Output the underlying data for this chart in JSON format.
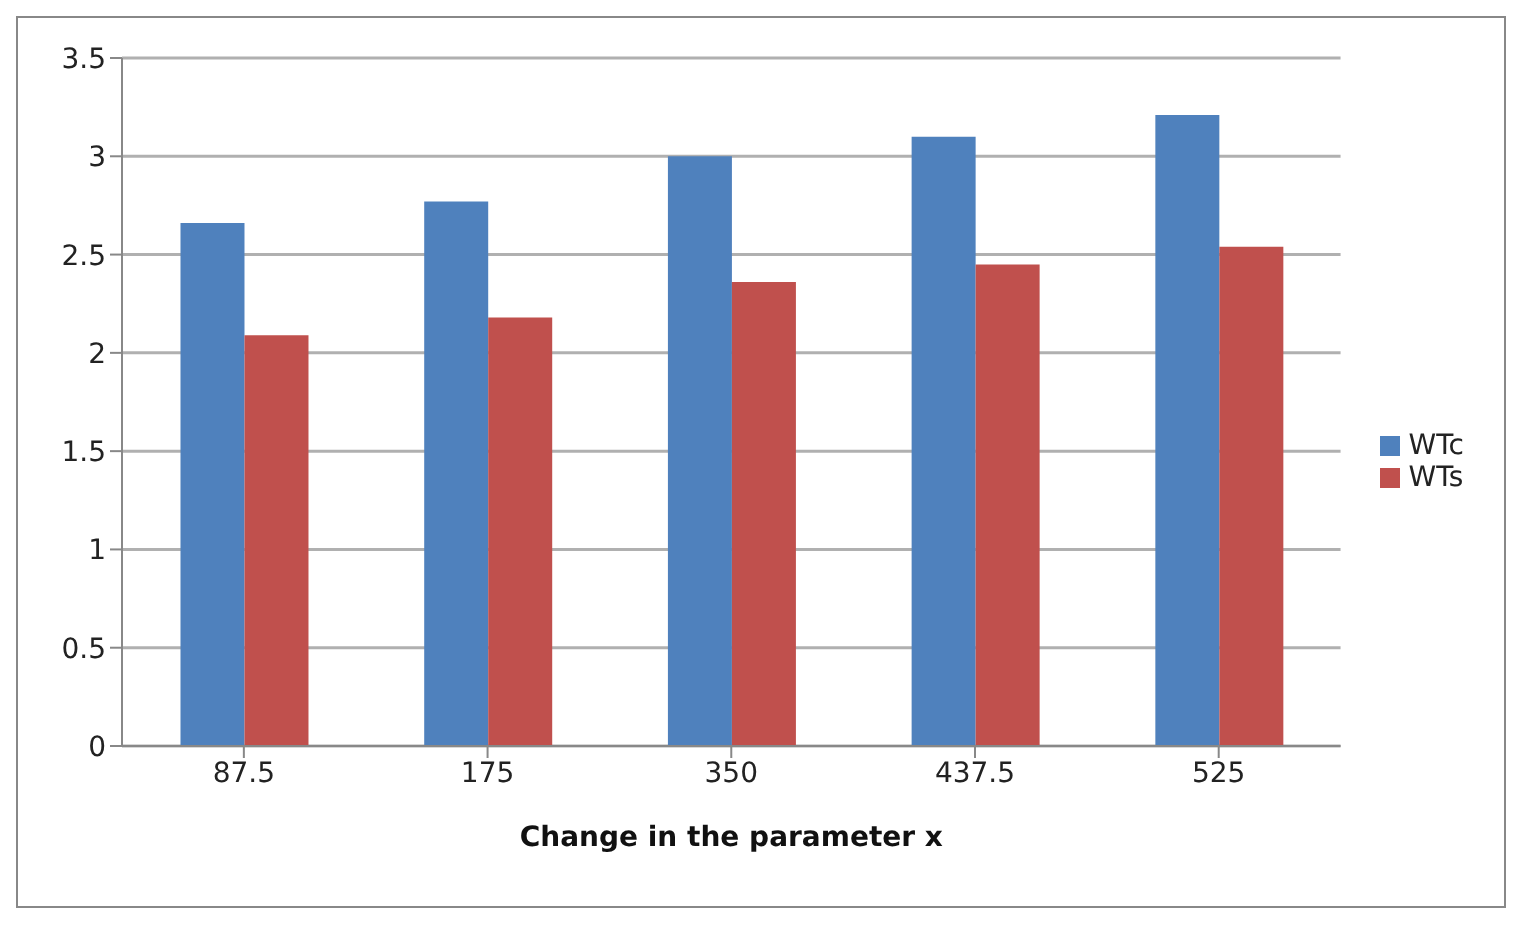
{
  "chart_data": {
    "type": "bar",
    "xlabel": "Change in the parameter x",
    "categories": [
      "87.5",
      "175",
      "350",
      "437.5",
      "525"
    ],
    "series": [
      {
        "name": "WTc",
        "color": "#4f81bd",
        "values": [
          2.66,
          2.77,
          3.0,
          3.1,
          3.21
        ]
      },
      {
        "name": "WTs",
        "color": "#c0504d",
        "values": [
          2.09,
          2.18,
          2.36,
          2.45,
          2.54
        ]
      }
    ],
    "ylim": [
      0,
      3.5
    ],
    "yticks": [
      0,
      0.5,
      1,
      1.5,
      2,
      2.5,
      3,
      3.5
    ],
    "grid": "y",
    "legend": "right"
  }
}
